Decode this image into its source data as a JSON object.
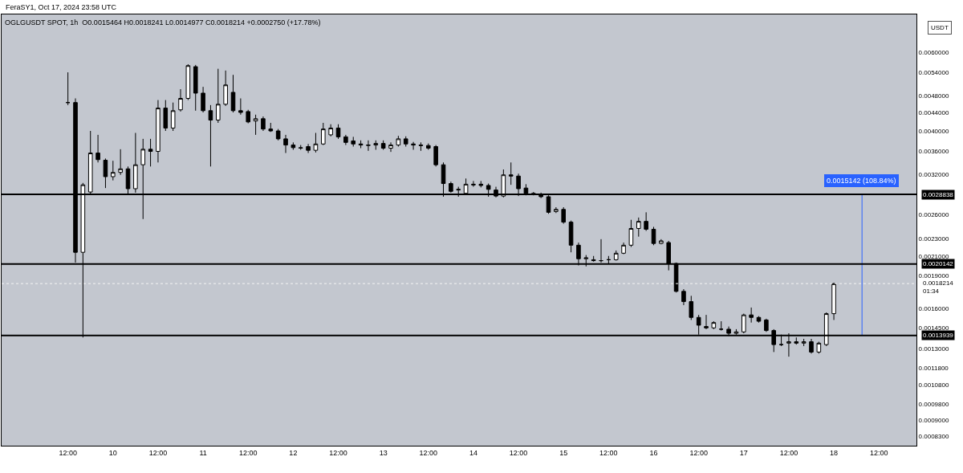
{
  "chart_data": {
    "type": "candlestick",
    "title": "OGLGUSDT SPOT, 1h  O0.0015464 H0.0018241 L0.0014977 C0.0018214 +0.0002750 (+17.78%)",
    "annotations": [
      "FeraSY1, Oct 17, 2024 23:58 UTC",
      "USDT",
      "0.0015142 (108.84%)"
    ],
    "x": [
      "2024-10-09T12:00",
      "2024-10-09T14:00",
      "2024-10-09T16:00",
      "2024-10-09T18:00",
      "2024-10-09T20:00",
      "2024-10-09T22:00",
      "2024-10-10T00:00",
      "2024-10-10T02:00",
      "2024-10-10T04:00",
      "2024-10-10T06:00",
      "2024-10-10T08:00",
      "2024-10-10T10:00",
      "2024-10-10T12:00",
      "2024-10-10T14:00",
      "2024-10-10T16:00",
      "2024-10-10T18:00",
      "2024-10-10T20:00",
      "2024-10-10T22:00",
      "2024-10-11T00:00",
      "2024-10-11T02:00",
      "2024-10-11T04:00",
      "2024-10-11T06:00",
      "2024-10-11T08:00",
      "2024-10-11T10:00",
      "2024-10-11T12:00",
      "2024-10-11T14:00",
      "2024-10-11T16:00",
      "2024-10-11T18:00",
      "2024-10-11T20:00",
      "2024-10-11T22:00",
      "2024-10-12T00:00",
      "2024-10-12T02:00",
      "2024-10-12T04:00",
      "2024-10-12T06:00",
      "2024-10-12T08:00",
      "2024-10-12T10:00",
      "2024-10-12T12:00",
      "2024-10-12T14:00",
      "2024-10-12T16:00",
      "2024-10-12T18:00",
      "2024-10-12T20:00",
      "2024-10-12T22:00",
      "2024-10-13T00:00",
      "2024-10-13T02:00",
      "2024-10-13T04:00",
      "2024-10-13T06:00",
      "2024-10-13T08:00",
      "2024-10-13T10:00",
      "2024-10-13T12:00",
      "2024-10-13T14:00",
      "2024-10-13T16:00",
      "2024-10-13T18:00",
      "2024-10-13T20:00",
      "2024-10-13T22:00",
      "2024-10-14T00:00",
      "2024-10-14T02:00",
      "2024-10-14T04:00",
      "2024-10-14T06:00",
      "2024-10-14T08:00",
      "2024-10-14T10:00",
      "2024-10-14T12:00",
      "2024-10-14T14:00",
      "2024-10-14T16:00",
      "2024-10-14T18:00",
      "2024-10-14T20:00",
      "2024-10-14T22:00",
      "2024-10-15T00:00",
      "2024-10-15T02:00",
      "2024-10-15T04:00",
      "2024-10-15T06:00",
      "2024-10-15T08:00",
      "2024-10-15T10:00",
      "2024-10-15T12:00",
      "2024-10-15T14:00",
      "2024-10-15T16:00",
      "2024-10-15T18:00",
      "2024-10-15T20:00",
      "2024-10-15T22:00",
      "2024-10-16T00:00",
      "2024-10-16T02:00",
      "2024-10-16T04:00",
      "2024-10-16T06:00",
      "2024-10-16T08:00",
      "2024-10-16T10:00",
      "2024-10-16T12:00",
      "2024-10-16T14:00",
      "2024-10-16T16:00",
      "2024-10-16T18:00",
      "2024-10-16T20:00",
      "2024-10-16T22:00",
      "2024-10-17T00:00",
      "2024-10-17T02:00",
      "2024-10-17T04:00",
      "2024-10-17T06:00",
      "2024-10-17T08:00",
      "2024-10-17T10:00",
      "2024-10-17T12:00",
      "2024-10-17T14:00",
      "2024-10-17T16:00",
      "2024-10-17T18:00",
      "2024-10-17T20:00",
      "2024-10-17T22:00",
      "2024-10-18T00:00"
    ],
    "ohlc": [
      [
        0.00463,
        0.00541,
        0.00457,
        0.00463
      ],
      [
        0.00463,
        0.00473,
        0.00203,
        0.00214
      ],
      [
        0.00214,
        0.00306,
        0.00138,
        0.00303
      ],
      [
        0.00292,
        0.004,
        0.00288,
        0.00357
      ],
      [
        0.00357,
        0.00392,
        0.0034,
        0.00345
      ],
      [
        0.00344,
        0.00347,
        0.00298,
        0.00316
      ],
      [
        0.00316,
        0.00343,
        0.0031,
        0.00323
      ],
      [
        0.00323,
        0.00364,
        0.00319,
        0.00329
      ],
      [
        0.00329,
        0.00333,
        0.00288,
        0.00297
      ],
      [
        0.00297,
        0.00396,
        0.00291,
        0.00336
      ],
      [
        0.00336,
        0.00384,
        0.00254,
        0.00364
      ],
      [
        0.00364,
        0.00384,
        0.00333,
        0.0036
      ],
      [
        0.0036,
        0.00469,
        0.0034,
        0.0045
      ],
      [
        0.0045,
        0.00469,
        0.004,
        0.00406
      ],
      [
        0.00406,
        0.00463,
        0.004,
        0.00444
      ],
      [
        0.00446,
        0.00496,
        0.00442,
        0.00473
      ],
      [
        0.00473,
        0.00564,
        0.00469,
        0.0056
      ],
      [
        0.00557,
        0.00562,
        0.00444,
        0.00486
      ],
      [
        0.00486,
        0.00502,
        0.0044,
        0.00444
      ],
      [
        0.00444,
        0.00457,
        0.00333,
        0.00423
      ],
      [
        0.00423,
        0.00551,
        0.00417,
        0.00459
      ],
      [
        0.00459,
        0.00546,
        0.00455,
        0.00507
      ],
      [
        0.00488,
        0.00534,
        0.0044,
        0.00444
      ],
      [
        0.00444,
        0.00473,
        0.00435,
        0.0044
      ],
      [
        0.00442,
        0.00446,
        0.00416,
        0.00419
      ],
      [
        0.00421,
        0.00435,
        0.00392,
        0.00426
      ],
      [
        0.00426,
        0.00431,
        0.004,
        0.00404
      ],
      [
        0.00404,
        0.00417,
        0.00398,
        0.004
      ],
      [
        0.004,
        0.00404,
        0.00381,
        0.00384
      ],
      [
        0.00384,
        0.00392,
        0.00357,
        0.00372
      ],
      [
        0.00372,
        0.00377,
        0.00363,
        0.00367
      ],
      [
        0.00367,
        0.00372,
        0.00363,
        0.00366
      ],
      [
        0.00369,
        0.00374,
        0.00357,
        0.00362
      ],
      [
        0.00362,
        0.00396,
        0.00358,
        0.00374
      ],
      [
        0.00374,
        0.00417,
        0.00372,
        0.00404
      ],
      [
        0.00392,
        0.00414,
        0.00389,
        0.00406
      ],
      [
        0.00406,
        0.00414,
        0.00384,
        0.00388
      ],
      [
        0.00388,
        0.00392,
        0.00372,
        0.00377
      ],
      [
        0.0038,
        0.00388,
        0.00369,
        0.00374
      ],
      [
        0.00374,
        0.00381,
        0.00366,
        0.00372
      ],
      [
        0.00371,
        0.00381,
        0.00361,
        0.00372
      ],
      [
        0.00372,
        0.00381,
        0.00363,
        0.00375
      ],
      [
        0.00375,
        0.00381,
        0.00363,
        0.00366
      ],
      [
        0.00366,
        0.00377,
        0.00359,
        0.00372
      ],
      [
        0.00372,
        0.0039,
        0.00369,
        0.00384
      ],
      [
        0.00384,
        0.00389,
        0.00369,
        0.00374
      ],
      [
        0.00374,
        0.00378,
        0.00363,
        0.00372
      ],
      [
        0.00372,
        0.00377,
        0.00361,
        0.00371
      ],
      [
        0.00371,
        0.00375,
        0.00363,
        0.00366
      ],
      [
        0.00369,
        0.00372,
        0.00333,
        0.00336
      ],
      [
        0.00336,
        0.0034,
        0.00285,
        0.00305
      ],
      [
        0.00305,
        0.00308,
        0.00291,
        0.00293
      ],
      [
        0.00295,
        0.003,
        0.00285,
        0.00296
      ],
      [
        0.0029,
        0.00313,
        0.00288,
        0.00304
      ],
      [
        0.00304,
        0.00309,
        0.003,
        0.00303
      ],
      [
        0.00304,
        0.00309,
        0.00299,
        0.00302
      ],
      [
        0.00302,
        0.00305,
        0.00285,
        0.00296
      ],
      [
        0.00295,
        0.003,
        0.00284,
        0.00286
      ],
      [
        0.00286,
        0.00328,
        0.00284,
        0.00319
      ],
      [
        0.00319,
        0.0034,
        0.00303,
        0.00317
      ],
      [
        0.00317,
        0.00321,
        0.00286,
        0.00297
      ],
      [
        0.00298,
        0.00304,
        0.00287,
        0.0029
      ],
      [
        0.0029,
        0.00292,
        0.00287,
        0.00289
      ],
      [
        0.00289,
        0.00291,
        0.00283,
        0.00285
      ],
      [
        0.00285,
        0.00287,
        0.00261,
        0.00263
      ],
      [
        0.00264,
        0.0027,
        0.00262,
        0.00267
      ],
      [
        0.00267,
        0.0027,
        0.00248,
        0.0025
      ],
      [
        0.0025,
        0.00252,
        0.00214,
        0.00222
      ],
      [
        0.00222,
        0.00225,
        0.002,
        0.00207
      ],
      [
        0.00207,
        0.00211,
        0.00199,
        0.00208
      ],
      [
        0.00206,
        0.0021,
        0.00204,
        0.00205
      ],
      [
        0.00205,
        0.00229,
        0.00203,
        0.00205
      ],
      [
        0.00206,
        0.0021,
        0.00202,
        0.00206
      ],
      [
        0.00206,
        0.00216,
        0.00205,
        0.00213
      ],
      [
        0.00213,
        0.00225,
        0.00212,
        0.00222
      ],
      [
        0.00222,
        0.00253,
        0.0022,
        0.00242
      ],
      [
        0.00242,
        0.00256,
        0.00232,
        0.00251
      ],
      [
        0.00251,
        0.00263,
        0.00239,
        0.00241
      ],
      [
        0.00241,
        0.00244,
        0.00222,
        0.00224
      ],
      [
        0.00224,
        0.00229,
        0.00223,
        0.00227
      ],
      [
        0.00225,
        0.00227,
        0.00195,
        0.00202
      ],
      [
        0.00202,
        0.00203,
        0.00174,
        0.00175
      ],
      [
        0.00175,
        0.00177,
        0.00163,
        0.00166
      ],
      [
        0.00166,
        0.00171,
        0.00151,
        0.00153
      ],
      [
        0.00153,
        0.00155,
        0.0014,
        0.00147
      ],
      [
        0.00146,
        0.00155,
        0.00144,
        0.00145
      ],
      [
        0.00145,
        0.0015,
        0.00144,
        0.00149
      ],
      [
        0.00144,
        0.0015,
        0.00143,
        0.00144
      ],
      [
        0.00144,
        0.00146,
        0.00139,
        0.00141
      ],
      [
        0.00141,
        0.00144,
        0.0014,
        0.00142
      ],
      [
        0.00142,
        0.00156,
        0.00141,
        0.00155
      ],
      [
        0.00155,
        0.00161,
        0.00149,
        0.00153
      ],
      [
        0.00153,
        0.00154,
        0.00149,
        0.0015
      ],
      [
        0.00151,
        0.00152,
        0.00142,
        0.00143
      ],
      [
        0.00143,
        0.00144,
        0.00128,
        0.00133
      ],
      [
        0.00133,
        0.0014,
        0.00132,
        0.00133
      ],
      [
        0.00134,
        0.00141,
        0.00125,
        0.00135
      ],
      [
        0.00135,
        0.00138,
        0.00133,
        0.00134
      ],
      [
        0.00134,
        0.00137,
        0.00132,
        0.00135
      ],
      [
        0.00135,
        0.00137,
        0.00127,
        0.00128
      ],
      [
        0.00128,
        0.00135,
        0.00127,
        0.00134
      ],
      [
        0.00133,
        0.00157,
        0.00132,
        0.00156
      ],
      [
        0.00156,
        0.00183,
        0.00151,
        0.00182
      ]
    ],
    "series": [
      {
        "type": "line",
        "color": "#2962ff",
        "x": [
          "2024-10-18T07:30",
          "2024-10-18T07:30"
        ],
        "values": [
          0.0013939,
          0.0028838
        ]
      }
    ],
    "log": "y",
    "xlim": [
      "2024-10-08T18:20",
      "2024-10-18T22:00"
    ],
    "xticks": [
      {
        "value": "2024-10-09T12:00",
        "label": "12:00"
      },
      {
        "value": "2024-10-10",
        "label": "10"
      },
      {
        "value": "2024-10-10T12:00",
        "label": "12:00"
      },
      {
        "value": "2024-10-11",
        "label": "11"
      },
      {
        "value": "2024-10-11T12:00",
        "label": "12:00"
      },
      {
        "value": "2024-10-12",
        "label": "12"
      },
      {
        "value": "2024-10-12T12:00",
        "label": "12:00"
      },
      {
        "value": "2024-10-13",
        "label": "13"
      },
      {
        "value": "2024-10-13T12:00",
        "label": "12:00"
      },
      {
        "value": "2024-10-14",
        "label": "14"
      },
      {
        "value": "2024-10-14T12:00",
        "label": "12:00"
      },
      {
        "value": "2024-10-15",
        "label": "15"
      },
      {
        "value": "2024-10-15T12:00",
        "label": "12:00"
      },
      {
        "value": "2024-10-16",
        "label": "16"
      },
      {
        "value": "2024-10-16T12:00",
        "label": "12:00"
      },
      {
        "value": "2024-10-17",
        "label": "17"
      },
      {
        "value": "2024-10-17T12:00",
        "label": "12:00"
      },
      {
        "value": "2024-10-18",
        "label": "18"
      },
      {
        "value": "2024-10-18T12:00",
        "label": "12:00"
      }
    ],
    "ylim": [
      0.00079,
      0.00729
    ],
    "yticks": [
      {
        "value": 0.006,
        "label": "0.0060000"
      },
      {
        "value": 0.0054,
        "label": "0.0054000"
      },
      {
        "value": 0.0048,
        "label": "0.0048000"
      },
      {
        "value": 0.0044,
        "label": "0.0044000"
      },
      {
        "value": 0.004,
        "label": "0.0040000"
      },
      {
        "value": 0.0036,
        "label": "0.0036000"
      },
      {
        "value": 0.0032,
        "label": "0.0032000"
      },
      {
        "value": 0.0026,
        "label": "0.0026000"
      },
      {
        "value": 0.0023,
        "label": "0.0023000"
      },
      {
        "value": 0.0021,
        "label": "0.0021000"
      },
      {
        "value": 0.0019,
        "label": "0.0019000"
      },
      {
        "value": 0.0016,
        "label": "0.0016000"
      },
      {
        "value": 0.00145,
        "label": "0.0014500"
      },
      {
        "value": 0.0013,
        "label": "0.0013000"
      },
      {
        "value": 0.00118,
        "label": "0.0011800"
      },
      {
        "value": 0.00108,
        "label": "0.0010800"
      },
      {
        "value": 0.00098,
        "label": "0.0009800"
      },
      {
        "value": 0.0009,
        "label": "0.0009000"
      },
      {
        "value": 0.00083,
        "label": "0.0008300"
      }
    ],
    "ref_lines": [
      {
        "axis": "y",
        "value": 0.0028838,
        "label": "0.0028838",
        "color": "#000000",
        "line_style": "solid"
      },
      {
        "axis": "y",
        "value": 0.0020142,
        "label": "0.0020142",
        "color": "#000000",
        "line_style": "solid"
      },
      {
        "axis": "y",
        "value": 0.0013939,
        "label": "0.0013939",
        "color": "#000000",
        "line_style": "solid"
      },
      {
        "axis": "y",
        "value": 0.0018214,
        "label": "0.0018214\n01:34",
        "color": "#ffffff",
        "line_style": "dotted"
      }
    ],
    "grid": false
  }
}
